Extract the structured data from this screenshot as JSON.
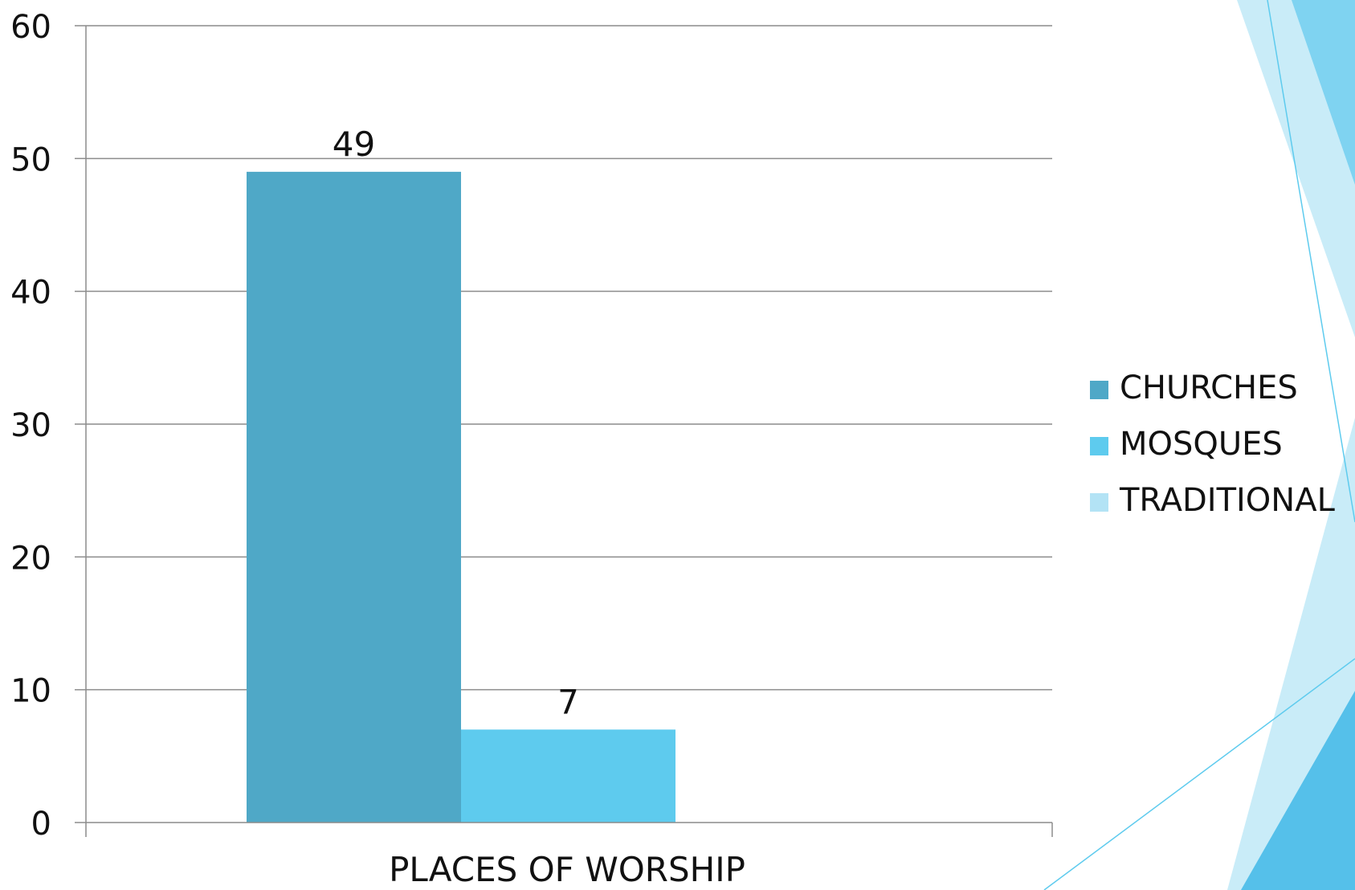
{
  "chart_data": {
    "type": "bar",
    "categories": [
      "PLACES OF WORSHIP"
    ],
    "series": [
      {
        "name": "CHURCHES",
        "values": [
          49
        ],
        "color": "#4fa8c7"
      },
      {
        "name": "MOSQUES",
        "values": [
          7
        ],
        "color": "#5ecbee"
      },
      {
        "name": "TRADITIONAL",
        "values": [
          0
        ],
        "color": "#b3e3f5"
      }
    ],
    "data_labels": [
      "49",
      "7",
      ""
    ],
    "ylim": [
      0,
      60
    ],
    "yticks": [
      0,
      10,
      20,
      30,
      40,
      50,
      60
    ],
    "grid": true,
    "legend_position": "right",
    "title": "",
    "xlabel": "",
    "ylabel": ""
  },
  "decor": {
    "accent_colors": [
      "#5ecbee",
      "#b3e3f5",
      "#55c0ea"
    ]
  }
}
